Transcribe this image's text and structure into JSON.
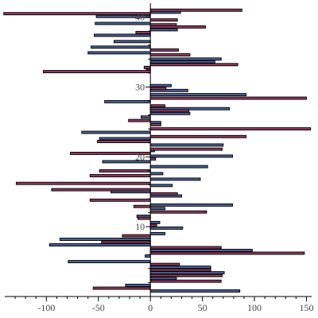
{
  "chart_data": {
    "type": "bar",
    "orientation": "horizontal",
    "xlim": [
      -140,
      155
    ],
    "ylim": [
      0,
      42
    ],
    "xticks": [
      -100,
      -50,
      0,
      50,
      100,
      150
    ],
    "yticks": [
      10,
      20,
      30,
      40
    ],
    "grid": false,
    "series": [
      {
        "color": "#4a5f8f",
        "edge": "#000000",
        "points": [
          {
            "y": 40.7,
            "value": 29
          },
          {
            "y": 40.1,
            "value": -52
          },
          {
            "y": 39.1,
            "value": -53
          },
          {
            "y": 38.2,
            "value": 26
          },
          {
            "y": 37.4,
            "value": -54
          },
          {
            "y": 36.5,
            "value": -35
          },
          {
            "y": 35.7,
            "value": -57
          },
          {
            "y": 34.9,
            "value": -60
          },
          {
            "y": 34.0,
            "value": 68
          },
          {
            "y": 33.6,
            "value": 62
          },
          {
            "y": 32.4,
            "value": -4
          },
          {
            "y": 30.2,
            "value": 20
          },
          {
            "y": 29.5,
            "value": 36
          },
          {
            "y": 28.9,
            "value": 92
          },
          {
            "y": 27.9,
            "value": -44
          },
          {
            "y": 26.9,
            "value": 76
          },
          {
            "y": 26.2,
            "value": 38
          },
          {
            "y": 25.7,
            "value": -9
          },
          {
            "y": 24.9,
            "value": 10
          },
          {
            "y": 23.5,
            "value": -66
          },
          {
            "y": 22.6,
            "value": -49
          },
          {
            "y": 21.7,
            "value": 70
          },
          {
            "y": 20.9,
            "value": 4
          },
          {
            "y": 20.1,
            "value": 79
          },
          {
            "y": 19.3,
            "value": -46
          },
          {
            "y": 18.6,
            "value": 55
          },
          {
            "y": 17.6,
            "value": 12
          },
          {
            "y": 16.8,
            "value": 48
          },
          {
            "y": 15.9,
            "value": 21
          },
          {
            "y": 15.0,
            "value": -38
          },
          {
            "y": 14.4,
            "value": 30
          },
          {
            "y": 13.1,
            "value": 79
          },
          {
            "y": 12.6,
            "value": 14
          },
          {
            "y": 11.5,
            "value": -13
          },
          {
            "y": 10.6,
            "value": 9
          },
          {
            "y": 9.8,
            "value": 31
          },
          {
            "y": 9.0,
            "value": 14
          },
          {
            "y": 8.2,
            "value": -87
          },
          {
            "y": 7.4,
            "value": -97
          },
          {
            "y": 6.6,
            "value": 98
          },
          {
            "y": 5.8,
            "value": -5
          },
          {
            "y": 5.0,
            "value": -79
          },
          {
            "y": 4.2,
            "value": 58
          },
          {
            "y": 3.4,
            "value": 71
          },
          {
            "y": 2.6,
            "value": 25
          },
          {
            "y": 1.6,
            "value": -24
          },
          {
            "y": 0.8,
            "value": 86
          }
        ]
      },
      {
        "color": "#8c3a5c",
        "edge": "#000000",
        "points": [
          {
            "y": 41.0,
            "value": 88
          },
          {
            "y": 40.5,
            "value": -141
          },
          {
            "y": 39.6,
            "value": 26
          },
          {
            "y": 38.9,
            "value": 25
          },
          {
            "y": 38.6,
            "value": 53
          },
          {
            "y": 37.8,
            "value": -14
          },
          {
            "y": 35.3,
            "value": 27
          },
          {
            "y": 34.6,
            "value": 38
          },
          {
            "y": 33.2,
            "value": 84
          },
          {
            "y": 32.8,
            "value": -6
          },
          {
            "y": 32.2,
            "value": -103
          },
          {
            "y": 29.8,
            "value": 15
          },
          {
            "y": 28.4,
            "value": 150
          },
          {
            "y": 27.3,
            "value": 14
          },
          {
            "y": 26.6,
            "value": 37
          },
          {
            "y": 25.2,
            "value": -21
          },
          {
            "y": 24.6,
            "value": 10
          },
          {
            "y": 24.0,
            "value": 154
          },
          {
            "y": 22.9,
            "value": 92
          },
          {
            "y": 22.2,
            "value": -51
          },
          {
            "y": 21.1,
            "value": 69
          },
          {
            "y": 20.5,
            "value": -77
          },
          {
            "y": 19.7,
            "value": 5
          },
          {
            "y": 18.0,
            "value": -49
          },
          {
            "y": 17.3,
            "value": -58
          },
          {
            "y": 16.2,
            "value": -129
          },
          {
            "y": 15.3,
            "value": -95
          },
          {
            "y": 14.7,
            "value": 26
          },
          {
            "y": 13.8,
            "value": -58
          },
          {
            "y": 12.9,
            "value": -16
          },
          {
            "y": 12.1,
            "value": 54
          },
          {
            "y": 11.2,
            "value": -12
          },
          {
            "y": 10.2,
            "value": 6
          },
          {
            "y": 8.7,
            "value": -27
          },
          {
            "y": 7.8,
            "value": -47
          },
          {
            "y": 7.0,
            "value": 68
          },
          {
            "y": 6.2,
            "value": 148
          },
          {
            "y": 4.6,
            "value": 28
          },
          {
            "y": 3.8,
            "value": 58
          },
          {
            "y": 3.0,
            "value": 69
          },
          {
            "y": 2.2,
            "value": 68
          },
          {
            "y": 1.2,
            "value": -55
          }
        ]
      }
    ]
  }
}
